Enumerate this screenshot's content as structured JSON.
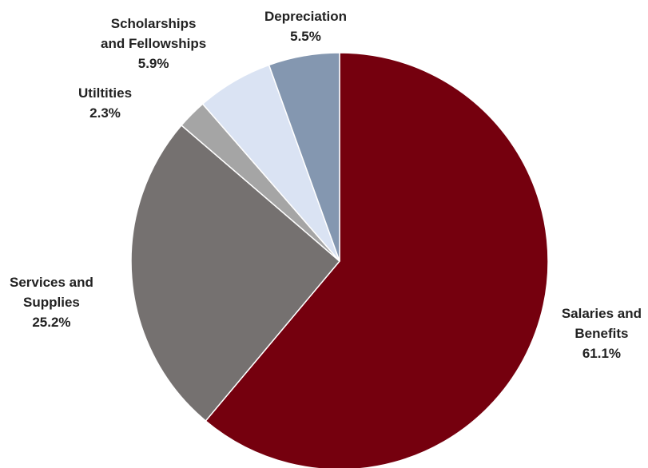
{
  "chart_data": {
    "type": "pie",
    "title": "",
    "start_angle_deg": 0,
    "direction": "clockwise",
    "slices": [
      {
        "label_lines": [
          "Salaries and",
          "Benefits"
        ],
        "value": 61.1,
        "value_label": "61.1%",
        "color": "#75000e"
      },
      {
        "label_lines": [
          "Services and",
          "Supplies"
        ],
        "value": 25.2,
        "value_label": "25.2%",
        "color": "#757170"
      },
      {
        "label_lines": [
          "Utiltities"
        ],
        "value": 2.3,
        "value_label": "2.3%",
        "color": "#a5a5a5"
      },
      {
        "label_lines": [
          "Scholarships",
          "and Fellowships"
        ],
        "value": 5.9,
        "value_label": "5.9%",
        "color": "#dae3f3"
      },
      {
        "label_lines": [
          "Depreciation"
        ],
        "value": 5.5,
        "value_label": "5.5%",
        "color": "#8497b0"
      }
    ]
  }
}
